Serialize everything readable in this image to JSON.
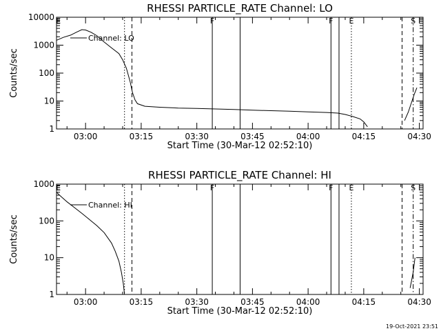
{
  "page": {
    "timestamp": "19-Oct-2021 23:51"
  },
  "chart_data": [
    {
      "type": "line",
      "title": "RHESSI PARTICLE_RATE Channel: LO",
      "xlabel": "Start Time (30-Mar-12 02:52:10)",
      "ylabel": "Counts/sec",
      "ylog": true,
      "ylim": [
        1,
        10000
      ],
      "xlim": [
        "02:52:10",
        "04:31:00"
      ],
      "yticks": [
        {
          "v": 1,
          "label": "1"
        },
        {
          "v": 10,
          "label": "10"
        },
        {
          "v": 100,
          "label": "100"
        },
        {
          "v": 1000,
          "label": "1000"
        },
        {
          "v": 10000,
          "label": "10000"
        }
      ],
      "xticks": [
        {
          "t": "03:00",
          "label": "03:00"
        },
        {
          "t": "03:15",
          "label": "03:15"
        },
        {
          "t": "03:30",
          "label": "03:30"
        },
        {
          "t": "03:45",
          "label": "03:45"
        },
        {
          "t": "04:00",
          "label": "04:00"
        },
        {
          "t": "04:15",
          "label": "04:15"
        },
        {
          "t": "04:30",
          "label": "04:30"
        }
      ],
      "legend": {
        "label": "Channel: LO",
        "placement": "top-left"
      },
      "markers": [
        {
          "t": "02:52:40",
          "style": "none",
          "label": "E"
        },
        {
          "t": "03:10:30",
          "style": "dotted",
          "label": ""
        },
        {
          "t": "03:12:30",
          "style": "dashed",
          "label": ""
        },
        {
          "t": "03:34:10",
          "style": "solid",
          "label": "F"
        },
        {
          "t": "03:41:40",
          "style": "solid",
          "label": ""
        },
        {
          "t": "04:06:10",
          "style": "solid",
          "label": "F"
        },
        {
          "t": "04:08:20",
          "style": "solid",
          "label": ""
        },
        {
          "t": "04:11:40",
          "style": "dotted",
          "label": "E"
        },
        {
          "t": "04:25:20",
          "style": "dashed",
          "label": ""
        },
        {
          "t": "04:28:20",
          "style": "dashdot",
          "label": "S"
        }
      ],
      "series": [
        {
          "segments": [
            [
              [
                "02:52:10",
                1500
              ],
              [
                "02:54:00",
                1900
              ],
              [
                "02:56:00",
                2300
              ],
              [
                "02:57:30",
                2900
              ],
              [
                "02:59:00",
                3600
              ],
              [
                "03:00:00",
                3500
              ],
              [
                "03:01:30",
                2900
              ],
              [
                "03:03:00",
                2200
              ],
              [
                "03:05:00",
                1300
              ],
              [
                "03:07:00",
                800
              ],
              [
                "03:09:00",
                500
              ],
              [
                "03:10:00",
                300
              ],
              [
                "03:11:00",
                150
              ],
              [
                "03:12:00",
                50
              ],
              [
                "03:12:40",
                20
              ],
              [
                "03:13:20",
                11
              ],
              [
                "03:14:00",
                8
              ],
              [
                "03:16:00",
                6.5
              ],
              [
                "03:20:00",
                6
              ],
              [
                "03:25:00",
                5.6
              ],
              [
                "03:30:00",
                5.4
              ],
              [
                "03:35:00",
                5.2
              ],
              [
                "03:40:00",
                5
              ],
              [
                "03:45:00",
                4.7
              ],
              [
                "03:50:00",
                4.5
              ],
              [
                "03:55:00",
                4.3
              ],
              [
                "04:00:00",
                4.1
              ],
              [
                "04:05:00",
                3.9
              ],
              [
                "04:08:00",
                3.7
              ],
              [
                "04:10:00",
                3.3
              ],
              [
                "04:12:00",
                2.8
              ],
              [
                "04:14:00",
                2.3
              ],
              [
                "04:15:00",
                1.8
              ],
              [
                "04:16:00",
                1.2
              ]
            ],
            [
              [
                "04:26:00",
                2
              ],
              [
                "04:27:00",
                4
              ],
              [
                "04:28:00",
                10
              ],
              [
                "04:28:40",
                18
              ],
              [
                "04:29:20",
                30
              ]
            ]
          ]
        }
      ]
    },
    {
      "type": "line",
      "title": "RHESSI PARTICLE_RATE Channel: HI",
      "xlabel": "Start Time (30-Mar-12 02:52:10)",
      "ylabel": "Counts/sec",
      "ylog": true,
      "ylim": [
        1,
        1000
      ],
      "xlim": [
        "02:52:10",
        "04:31:00"
      ],
      "yticks": [
        {
          "v": 1,
          "label": "1"
        },
        {
          "v": 10,
          "label": "10"
        },
        {
          "v": 100,
          "label": "100"
        },
        {
          "v": 1000,
          "label": "1000"
        }
      ],
      "xticks": [
        {
          "t": "03:00",
          "label": "03:00"
        },
        {
          "t": "03:15",
          "label": "03:15"
        },
        {
          "t": "03:30",
          "label": "03:30"
        },
        {
          "t": "03:45",
          "label": "03:45"
        },
        {
          "t": "04:00",
          "label": "04:00"
        },
        {
          "t": "04:15",
          "label": "04:15"
        },
        {
          "t": "04:30",
          "label": "04:30"
        }
      ],
      "legend": {
        "label": "Channel: HI",
        "placement": "top-left"
      },
      "markers": [
        {
          "t": "02:52:40",
          "style": "none",
          "label": "E"
        },
        {
          "t": "03:10:30",
          "style": "dotted",
          "label": ""
        },
        {
          "t": "03:12:30",
          "style": "dashed",
          "label": ""
        },
        {
          "t": "03:34:10",
          "style": "solid",
          "label": "F"
        },
        {
          "t": "03:41:40",
          "style": "solid",
          "label": ""
        },
        {
          "t": "04:06:10",
          "style": "solid",
          "label": "F"
        },
        {
          "t": "04:08:20",
          "style": "solid",
          "label": ""
        },
        {
          "t": "04:11:40",
          "style": "dotted",
          "label": "E"
        },
        {
          "t": "04:25:20",
          "style": "dashed",
          "label": ""
        },
        {
          "t": "04:28:20",
          "style": "dashdot",
          "label": "S"
        }
      ],
      "series": [
        {
          "segments": [
            [
              [
                "02:52:10",
                600
              ],
              [
                "02:53:00",
                500
              ],
              [
                "02:55:00",
                330
              ],
              [
                "02:57:00",
                230
              ],
              [
                "02:59:00",
                160
              ],
              [
                "03:01:00",
                110
              ],
              [
                "03:03:00",
                75
              ],
              [
                "03:05:00",
                48
              ],
              [
                "03:07:00",
                25
              ],
              [
                "03:08:00",
                15
              ],
              [
                "03:09:00",
                8
              ],
              [
                "03:09:40",
                4
              ],
              [
                "03:10:10",
                2
              ],
              [
                "03:10:30",
                1
              ]
            ],
            [
              [
                "04:27:30",
                1.5
              ],
              [
                "04:28:20",
                4
              ],
              [
                "04:28:50",
                10
              ]
            ]
          ]
        }
      ]
    }
  ]
}
